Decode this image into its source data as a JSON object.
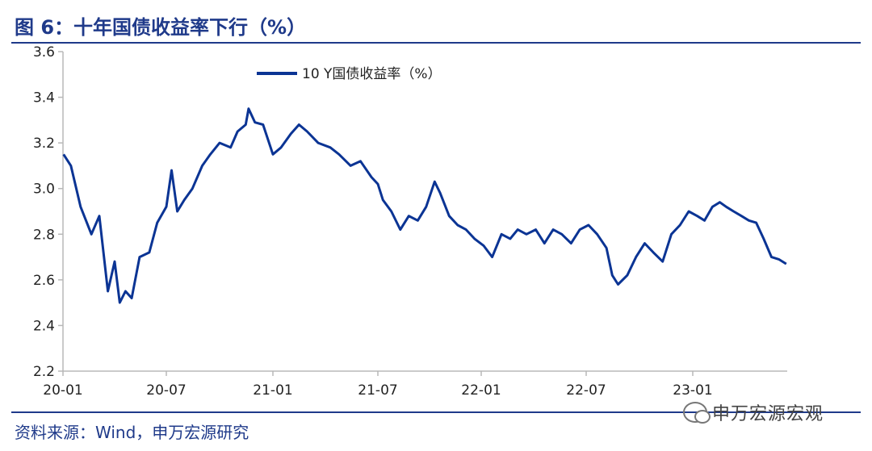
{
  "header": {
    "title": "图 6：十年国债收益率下行（%）"
  },
  "footer": {
    "source": "资料来源：Wind，申万宏源研究",
    "watermark": "申万宏源宏观"
  },
  "colors": {
    "accent": "#1f3a8a",
    "series": "#0b3494"
  },
  "chart_data": {
    "type": "line",
    "title": "",
    "xlabel": "",
    "ylabel": "",
    "ylim": [
      2.2,
      3.6
    ],
    "yticks": [
      3.6,
      3.4,
      3.2,
      3.0,
      2.8,
      2.6,
      2.4,
      2.2
    ],
    "yticks_labels": [
      "3.6",
      "3.4",
      "3.2",
      "3.0",
      "2.8",
      "2.6",
      "2.4",
      "2.2"
    ],
    "xticks": [
      "20-01",
      "20-07",
      "21-01",
      "21-07",
      "22-01",
      "22-07",
      "23-01"
    ],
    "grid": false,
    "legend_position": "top-center",
    "series": [
      {
        "name": "10 Y国债收益率（%）",
        "x": [
          "2020-01-02",
          "2020-01-15",
          "2020-02-01",
          "2020-02-20",
          "2020-03-05",
          "2020-03-20",
          "2020-04-01",
          "2020-04-10",
          "2020-04-20",
          "2020-05-01",
          "2020-05-15",
          "2020-06-01",
          "2020-06-15",
          "2020-07-01",
          "2020-07-10",
          "2020-07-20",
          "2020-08-01",
          "2020-08-15",
          "2020-09-01",
          "2020-09-15",
          "2020-10-01",
          "2020-10-20",
          "2020-11-01",
          "2020-11-15",
          "2020-11-20",
          "2020-12-01",
          "2020-12-15",
          "2021-01-01",
          "2021-01-15",
          "2021-02-01",
          "2021-02-15",
          "2021-03-01",
          "2021-03-20",
          "2021-04-10",
          "2021-04-25",
          "2021-05-15",
          "2021-06-01",
          "2021-06-20",
          "2021-07-01",
          "2021-07-10",
          "2021-07-25",
          "2021-08-10",
          "2021-08-25",
          "2021-09-10",
          "2021-09-25",
          "2021-10-10",
          "2021-10-20",
          "2021-11-05",
          "2021-11-20",
          "2021-12-05",
          "2021-12-20",
          "2022-01-05",
          "2022-01-20",
          "2022-02-05",
          "2022-02-20",
          "2022-03-05",
          "2022-03-20",
          "2022-04-05",
          "2022-04-20",
          "2022-05-05",
          "2022-05-20",
          "2022-06-05",
          "2022-06-20",
          "2022-07-05",
          "2022-07-20",
          "2022-08-05",
          "2022-08-15",
          "2022-08-25",
          "2022-09-10",
          "2022-09-25",
          "2022-10-10",
          "2022-10-25",
          "2022-11-10",
          "2022-11-25",
          "2022-12-10",
          "2022-12-25",
          "2023-01-10",
          "2023-01-25",
          "2023-02-10",
          "2023-02-25",
          "2023-03-10",
          "2023-03-25",
          "2023-04-10",
          "2023-04-25",
          "2023-05-10",
          "2023-05-25",
          "2023-06-10",
          "2023-06-25",
          "2023-07-10"
        ],
        "values": [
          3.15,
          3.1,
          2.92,
          2.8,
          2.88,
          2.55,
          2.68,
          2.5,
          2.55,
          2.52,
          2.7,
          2.72,
          2.85,
          2.92,
          3.08,
          2.9,
          2.95,
          3.0,
          3.1,
          3.15,
          3.2,
          3.18,
          3.25,
          3.28,
          3.35,
          3.29,
          3.28,
          3.15,
          3.18,
          3.24,
          3.28,
          3.25,
          3.2,
          3.18,
          3.15,
          3.1,
          3.12,
          3.05,
          3.02,
          2.95,
          2.9,
          2.82,
          2.88,
          2.86,
          2.92,
          3.03,
          2.98,
          2.88,
          2.84,
          2.82,
          2.78,
          2.75,
          2.7,
          2.8,
          2.78,
          2.82,
          2.8,
          2.82,
          2.76,
          2.82,
          2.8,
          2.76,
          2.82,
          2.84,
          2.8,
          2.74,
          2.62,
          2.58,
          2.62,
          2.7,
          2.76,
          2.72,
          2.68,
          2.8,
          2.84,
          2.9,
          2.88,
          2.86,
          2.92,
          2.94,
          2.92,
          2.9,
          2.88,
          2.86,
          2.85,
          2.78,
          2.7,
          2.69,
          2.67
        ]
      }
    ]
  }
}
